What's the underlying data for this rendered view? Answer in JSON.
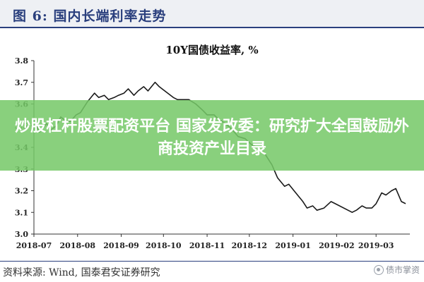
{
  "figure": {
    "label": "图 6:  国内长端利率走势"
  },
  "overlay": {
    "headline": "炒股杠杆股票配资平台 国家发改委：研究扩大全国鼓励外商投资产业目录"
  },
  "source": {
    "text": "资料来源:  Wind, 国泰君安证券研究"
  },
  "watermark": {
    "text": "债市掌资"
  },
  "colors": {
    "line": "#1a1a1a",
    "axis": "#333333",
    "header": "#2a3f7d",
    "banner": "#76c868"
  },
  "chart_data": {
    "type": "line",
    "title": "10Y国债收益率, %",
    "xlabel": "",
    "ylabel": "",
    "ylim": [
      3.0,
      3.8
    ],
    "yticks": [
      "3.0",
      "3.1",
      "3.2",
      "3.3",
      "3.4",
      "3.5",
      "3.6",
      "3.7",
      "3.8"
    ],
    "xlim": [
      "2018-07-01",
      "2019-03-25"
    ],
    "xticks": [
      "2018-07",
      "2018-08",
      "2018-09",
      "2018-10",
      "2018-11",
      "2018-12",
      "2019-01",
      "2019-02",
      "2019-03"
    ],
    "series": [
      {
        "name": "",
        "x": [
          "2018-07-02",
          "2018-07-05",
          "2018-07-10",
          "2018-07-13",
          "2018-07-17",
          "2018-07-20",
          "2018-07-24",
          "2018-07-27",
          "2018-07-31",
          "2018-08-03",
          "2018-08-08",
          "2018-08-13",
          "2018-08-16",
          "2018-08-20",
          "2018-08-23",
          "2018-08-27",
          "2018-08-30",
          "2018-09-03",
          "2018-09-06",
          "2018-09-10",
          "2018-09-13",
          "2018-09-17",
          "2018-09-20",
          "2018-09-25",
          "2018-09-28",
          "2018-10-08",
          "2018-10-11",
          "2018-10-15",
          "2018-10-19",
          "2018-10-24",
          "2018-10-29",
          "2018-11-01",
          "2018-11-06",
          "2018-11-09",
          "2018-11-14",
          "2018-11-19",
          "2018-11-23",
          "2018-11-28",
          "2018-12-03",
          "2018-12-07",
          "2018-12-12",
          "2018-12-17",
          "2018-12-21",
          "2018-12-26",
          "2018-12-29",
          "2019-01-03",
          "2019-01-08",
          "2019-01-11",
          "2019-01-15",
          "2019-01-18",
          "2019-01-23",
          "2019-01-28",
          "2019-01-31",
          "2019-02-12",
          "2019-02-15",
          "2019-02-19",
          "2019-02-22",
          "2019-02-26",
          "2019-03-01",
          "2019-03-05",
          "2019-03-08",
          "2019-03-12",
          "2019-03-15",
          "2019-03-19",
          "2019-03-22"
        ],
        "values": [
          3.51,
          3.47,
          3.51,
          3.48,
          3.5,
          3.54,
          3.52,
          3.52,
          3.55,
          3.56,
          3.61,
          3.65,
          3.63,
          3.64,
          3.62,
          3.63,
          3.64,
          3.65,
          3.67,
          3.64,
          3.66,
          3.68,
          3.66,
          3.7,
          3.68,
          3.63,
          3.62,
          3.62,
          3.62,
          3.6,
          3.57,
          3.55,
          3.55,
          3.53,
          3.51,
          3.48,
          3.45,
          3.44,
          3.41,
          3.4,
          3.37,
          3.32,
          3.26,
          3.22,
          3.23,
          3.19,
          3.15,
          3.12,
          3.13,
          3.11,
          3.12,
          3.15,
          3.14,
          3.1,
          3.11,
          3.13,
          3.12,
          3.12,
          3.14,
          3.19,
          3.18,
          3.2,
          3.21,
          3.15,
          3.14
        ]
      }
    ],
    "grid": false,
    "legend": "none"
  }
}
